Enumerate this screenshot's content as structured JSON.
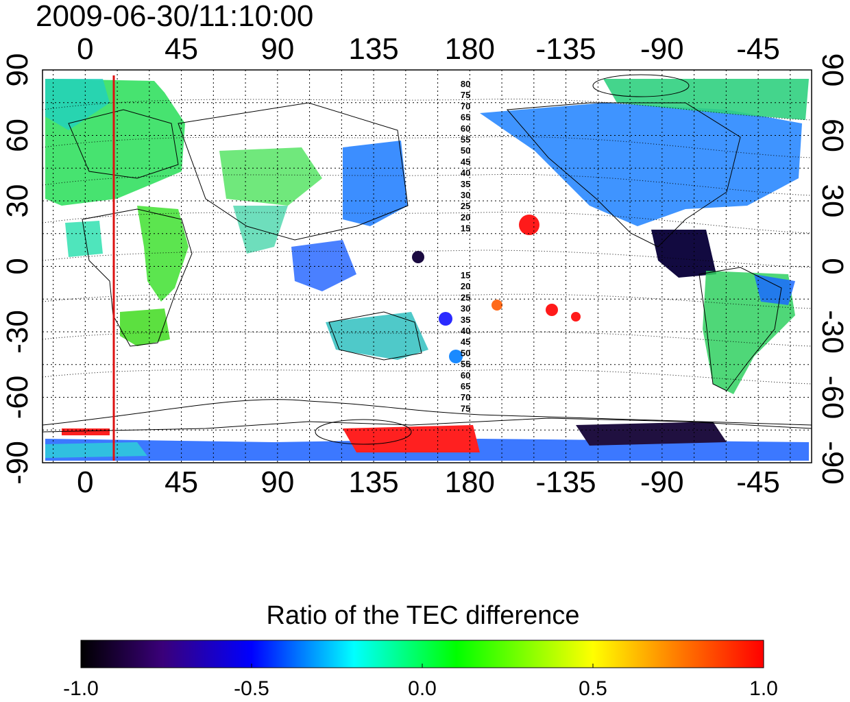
{
  "title": "2009-06-30/11:10:00",
  "colorbar": {
    "label": "Ratio of the TEC difference",
    "ticks": [
      "-1.0",
      "-0.5",
      "0.0",
      "0.5",
      "1.0"
    ],
    "range": [
      -1.0,
      1.0
    ],
    "colors": [
      "#000000",
      "#3a007a",
      "#0000ff",
      "#00ffff",
      "#00ff00",
      "#ffff00",
      "#ff8000",
      "#ff0000"
    ]
  },
  "map": {
    "lon_ticks_bottom": [
      "0",
      "45",
      "90",
      "135",
      "180",
      "-135",
      "-90",
      "-45"
    ],
    "lon_ticks_top": [
      "0",
      "45",
      "90",
      "135",
      "180",
      "-135",
      "-90",
      "-45"
    ],
    "lat_ticks_left": [
      "90",
      "60",
      "30",
      "0",
      "-30",
      "-60",
      "-90"
    ],
    "lat_ticks_right": [
      "90",
      "60",
      "30",
      "0",
      "-30",
      "-60",
      "-90"
    ],
    "lat_range": [
      -90,
      90
    ],
    "lon_range_east": [
      -20,
      340
    ],
    "grid": "dotted, 15 degree spacing",
    "marker_line": {
      "lon": 13,
      "color": "#dd1111"
    },
    "contour_labels_north": [
      "80",
      "75",
      "70",
      "65",
      "60",
      "55",
      "50",
      "45",
      "40",
      "35",
      "30",
      "25",
      "20",
      "15"
    ],
    "contour_labels_south": [
      "15",
      "20",
      "25",
      "30",
      "35",
      "40",
      "45",
      "50",
      "55",
      "60",
      "65",
      "70",
      "75"
    ]
  }
}
